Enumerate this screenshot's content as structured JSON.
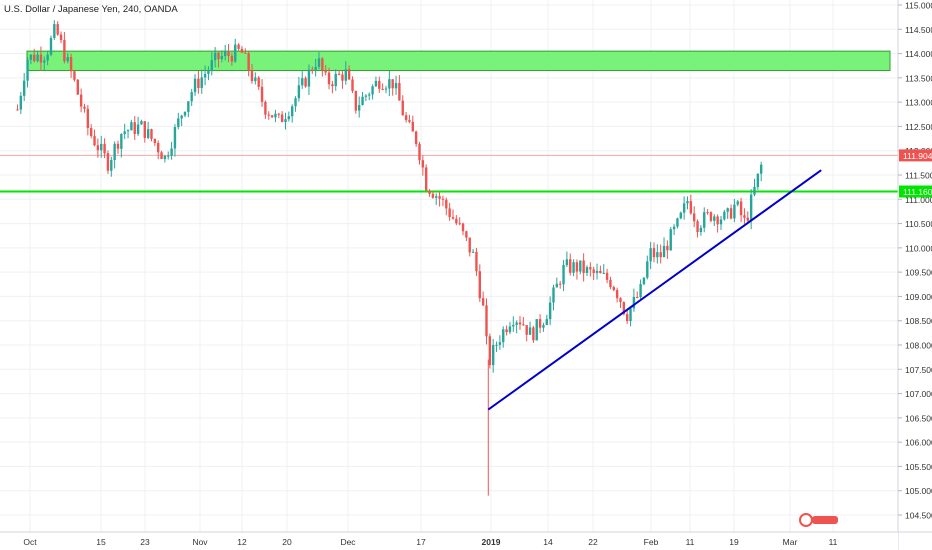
{
  "header": {
    "title": "U.S. Dollar / Japanese Yen, 240, OANDA"
  },
  "colors": {
    "up": "#26a69a",
    "down": "#ef5350",
    "resistance_zone": "#79f279",
    "support_line": "#00e600",
    "trend_line": "#0000cc",
    "price_tag": "#ef5350",
    "support_tag": "#00e600"
  },
  "chart_data": {
    "type": "candlestick",
    "title": "U.S. Dollar / Japanese Yen, 240, OANDA",
    "ylim": [
      104.3,
      115.1
    ],
    "y_ticks": [
      "115.000",
      "114.500",
      "114.000",
      "113.500",
      "113.000",
      "112.500",
      "112.000",
      "111.500",
      "111.000",
      "110.500",
      "110.000",
      "109.500",
      "109.000",
      "108.500",
      "108.000",
      "107.500",
      "107.000",
      "106.500",
      "106.000",
      "105.500",
      "105.000",
      "104.500"
    ],
    "x_ticks": [
      "Oct",
      "15",
      "23",
      "Nov",
      "12",
      "20",
      "Dec",
      "17",
      "2019",
      "14",
      "22",
      "Feb",
      "11",
      "19",
      "Mar",
      "11"
    ],
    "grid": true,
    "last_price_label": "111.904",
    "support_label": "111.160",
    "resistance_zone": [
      113.65,
      114.05
    ],
    "support_level": 111.16,
    "last_price": 111.904,
    "trendline": {
      "start": [
        "2019-01-03",
        106.67
      ],
      "end": [
        "2019-03-14",
        111.6
      ]
    },
    "path": [
      [
        "2018-09-26",
        112.85
      ],
      [
        "2018-09-28",
        113.9
      ],
      [
        "2018-10-02",
        114.0
      ],
      [
        "2018-10-04",
        114.5
      ],
      [
        "2018-10-08",
        113.4
      ],
      [
        "2018-10-11",
        112.4
      ],
      [
        "2018-10-15",
        111.75
      ],
      [
        "2018-10-18",
        112.4
      ],
      [
        "2018-10-22",
        112.5
      ],
      [
        "2018-10-25",
        112.15
      ],
      [
        "2018-10-27",
        111.85
      ],
      [
        "2018-10-31",
        112.9
      ],
      [
        "2018-11-02",
        113.3
      ],
      [
        "2018-11-07",
        113.9
      ],
      [
        "2018-11-12",
        114.05
      ],
      [
        "2018-11-14",
        113.6
      ],
      [
        "2018-11-17",
        112.9
      ],
      [
        "2018-11-20",
        112.6
      ],
      [
        "2018-11-23",
        113.0
      ],
      [
        "2018-11-28",
        113.9
      ],
      [
        "2018-11-30",
        113.4
      ],
      [
        "2018-12-04",
        113.6
      ],
      [
        "2018-12-06",
        112.9
      ],
      [
        "2018-12-11",
        113.45
      ],
      [
        "2018-12-14",
        113.4
      ],
      [
        "2018-12-17",
        112.5
      ],
      [
        "2018-12-19",
        112.2
      ],
      [
        "2018-12-21",
        111.3
      ],
      [
        "2018-12-24",
        111.0
      ],
      [
        "2018-12-26",
        110.7
      ],
      [
        "2018-12-28",
        110.4
      ],
      [
        "2018-12-31",
        109.8
      ],
      [
        "2019-01-02",
        108.7
      ],
      [
        "2019-01-03",
        107.6
      ],
      [
        "2019-01-05",
        108.1
      ],
      [
        "2019-01-08",
        108.6
      ],
      [
        "2019-01-10",
        108.5
      ],
      [
        "2019-01-12",
        108.2
      ],
      [
        "2019-01-15",
        108.6
      ],
      [
        "2019-01-17",
        109.1
      ],
      [
        "2019-01-19",
        109.6
      ],
      [
        "2019-01-22",
        109.6
      ],
      [
        "2019-01-24",
        109.5
      ],
      [
        "2019-01-27",
        109.4
      ],
      [
        "2019-01-29",
        109.3
      ],
      [
        "2019-01-31",
        108.9
      ],
      [
        "2019-02-01",
        108.6
      ],
      [
        "2019-02-04",
        109.1
      ],
      [
        "2019-02-06",
        109.9
      ],
      [
        "2019-02-08",
        109.8
      ],
      [
        "2019-02-12",
        110.5
      ],
      [
        "2019-02-14",
        111.0
      ],
      [
        "2019-02-16",
        110.5
      ],
      [
        "2019-02-19",
        110.7
      ],
      [
        "2019-02-22",
        110.6
      ],
      [
        "2019-02-24",
        110.9
      ],
      [
        "2019-02-26",
        110.5
      ],
      [
        "2019-02-28",
        111.2
      ],
      [
        "2019-03-02",
        111.9
      ]
    ],
    "extremes": [
      [
        "2019-01-03",
        104.9
      ]
    ]
  },
  "brand": {
    "mark": "tv-logo-mark"
  }
}
